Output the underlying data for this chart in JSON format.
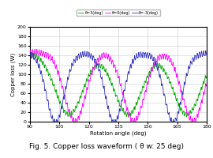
{
  "xlabel": "Rotation angle (deg)",
  "ylabel": "Copper loss (W)",
  "xlim": [
    90,
    180
  ],
  "ylim": [
    0,
    200
  ],
  "xticks": [
    90,
    105,
    120,
    135,
    150,
    165,
    180
  ],
  "yticks": [
    0,
    20,
    40,
    60,
    80,
    100,
    120,
    140,
    160,
    180,
    200
  ],
  "legend_labels": [
    "θ=-3(deg)",
    "θ=0(deg)",
    "θ=3(deg)"
  ],
  "line_colors": [
    "#3333bb",
    "#ff00ff",
    "#00aa00"
  ],
  "caption": "Fig. 5. Copper loss waveform ( θ w: 25 deg)",
  "background_color": "#ffffff",
  "grid_color": "#cccccc",
  "x_start": 90,
  "x_end": 180,
  "blue_dip_centers": [
    103,
    133,
    163
  ],
  "magenta_dip_centers": [
    113,
    143,
    173
  ],
  "green_dip_centers": [
    110,
    140,
    170
  ],
  "blue_dip_sigma": 4.5,
  "magenta_dip_sigma": 5.5,
  "green_dip_sigma": 7.0,
  "high_level": 143,
  "dip_depth": 145,
  "green_dip_depth": 130
}
